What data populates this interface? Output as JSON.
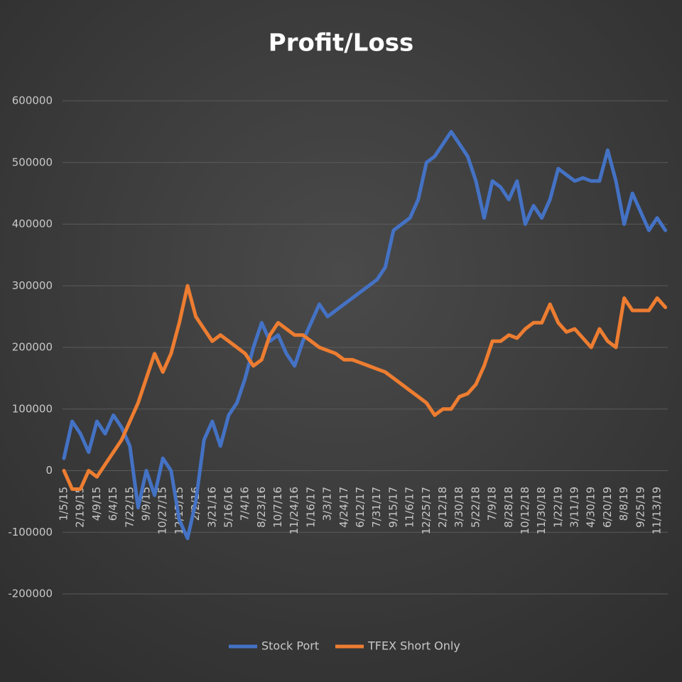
{
  "chart_data": {
    "type": "line",
    "title": "Profit/Loss",
    "categories": [
      "1/5/15",
      null,
      "2/19/15",
      null,
      "4/9/15",
      null,
      "6/4/15",
      null,
      "7/22/15",
      null,
      "9/9/15",
      null,
      "10/27/15",
      null,
      "12/15/15",
      null,
      "2/2/16",
      null,
      "3/21/16",
      null,
      "5/16/16",
      null,
      "7/4/16",
      null,
      "8/23/16",
      null,
      "10/7/16",
      null,
      "11/24/16",
      null,
      "1/16/17",
      null,
      "3/3/17",
      null,
      "4/24/17",
      null,
      "6/12/17",
      null,
      "7/31/17",
      null,
      "9/15/17",
      null,
      "11/6/17",
      null,
      "12/25/17",
      null,
      "2/12/18",
      null,
      "3/30/18",
      null,
      "5/22/18",
      null,
      "7/9/18",
      null,
      "8/28/18",
      null,
      "10/12/18",
      null,
      "11/30/18",
      null,
      "1/22/19",
      null,
      "3/11/19",
      null,
      "4/30/19",
      null,
      "6/20/19",
      null,
      "8/8/19",
      null,
      "9/25/19",
      null,
      "11/13/19",
      null
    ],
    "series": [
      {
        "name": "Stock Port",
        "color": "#4472c4",
        "values": [
          20000,
          80000,
          60000,
          30000,
          80000,
          60000,
          90000,
          70000,
          40000,
          -60000,
          0,
          -40000,
          20000,
          0,
          -80000,
          -110000,
          -50000,
          50000,
          80000,
          40000,
          90000,
          110000,
          150000,
          200000,
          240000,
          210000,
          220000,
          190000,
          170000,
          210000,
          240000,
          270000,
          250000,
          260000,
          270000,
          280000,
          290000,
          300000,
          310000,
          330000,
          390000,
          400000,
          410000,
          440000,
          500000,
          510000,
          530000,
          550000,
          530000,
          510000,
          470000,
          410000,
          470000,
          460000,
          440000,
          470000,
          400000,
          430000,
          410000,
          440000,
          490000,
          480000,
          470000,
          475000,
          470000,
          470000,
          520000,
          470000,
          400000,
          450000,
          420000,
          390000,
          410000,
          390000
        ]
      },
      {
        "name": "TFEX Short Only",
        "color": "#ed7d31",
        "values": [
          0,
          -30000,
          -30000,
          0,
          -10000,
          10000,
          30000,
          50000,
          80000,
          110000,
          150000,
          190000,
          160000,
          190000,
          240000,
          300000,
          250000,
          230000,
          210000,
          220000,
          210000,
          200000,
          190000,
          170000,
          180000,
          220000,
          240000,
          230000,
          220000,
          220000,
          210000,
          200000,
          195000,
          190000,
          180000,
          180000,
          175000,
          170000,
          165000,
          160000,
          150000,
          140000,
          130000,
          120000,
          110000,
          90000,
          100000,
          100000,
          120000,
          125000,
          140000,
          170000,
          210000,
          210000,
          220000,
          215000,
          230000,
          240000,
          240000,
          270000,
          240000,
          225000,
          230000,
          215000,
          200000,
          230000,
          210000,
          200000,
          280000,
          260000,
          260000,
          260000,
          280000,
          265000
        ]
      }
    ],
    "ylim": [
      -200000,
      600000
    ],
    "yticks": [
      -200000,
      -100000,
      0,
      100000,
      200000,
      300000,
      400000,
      500000,
      600000
    ],
    "grid": true,
    "legend": "bottom"
  }
}
